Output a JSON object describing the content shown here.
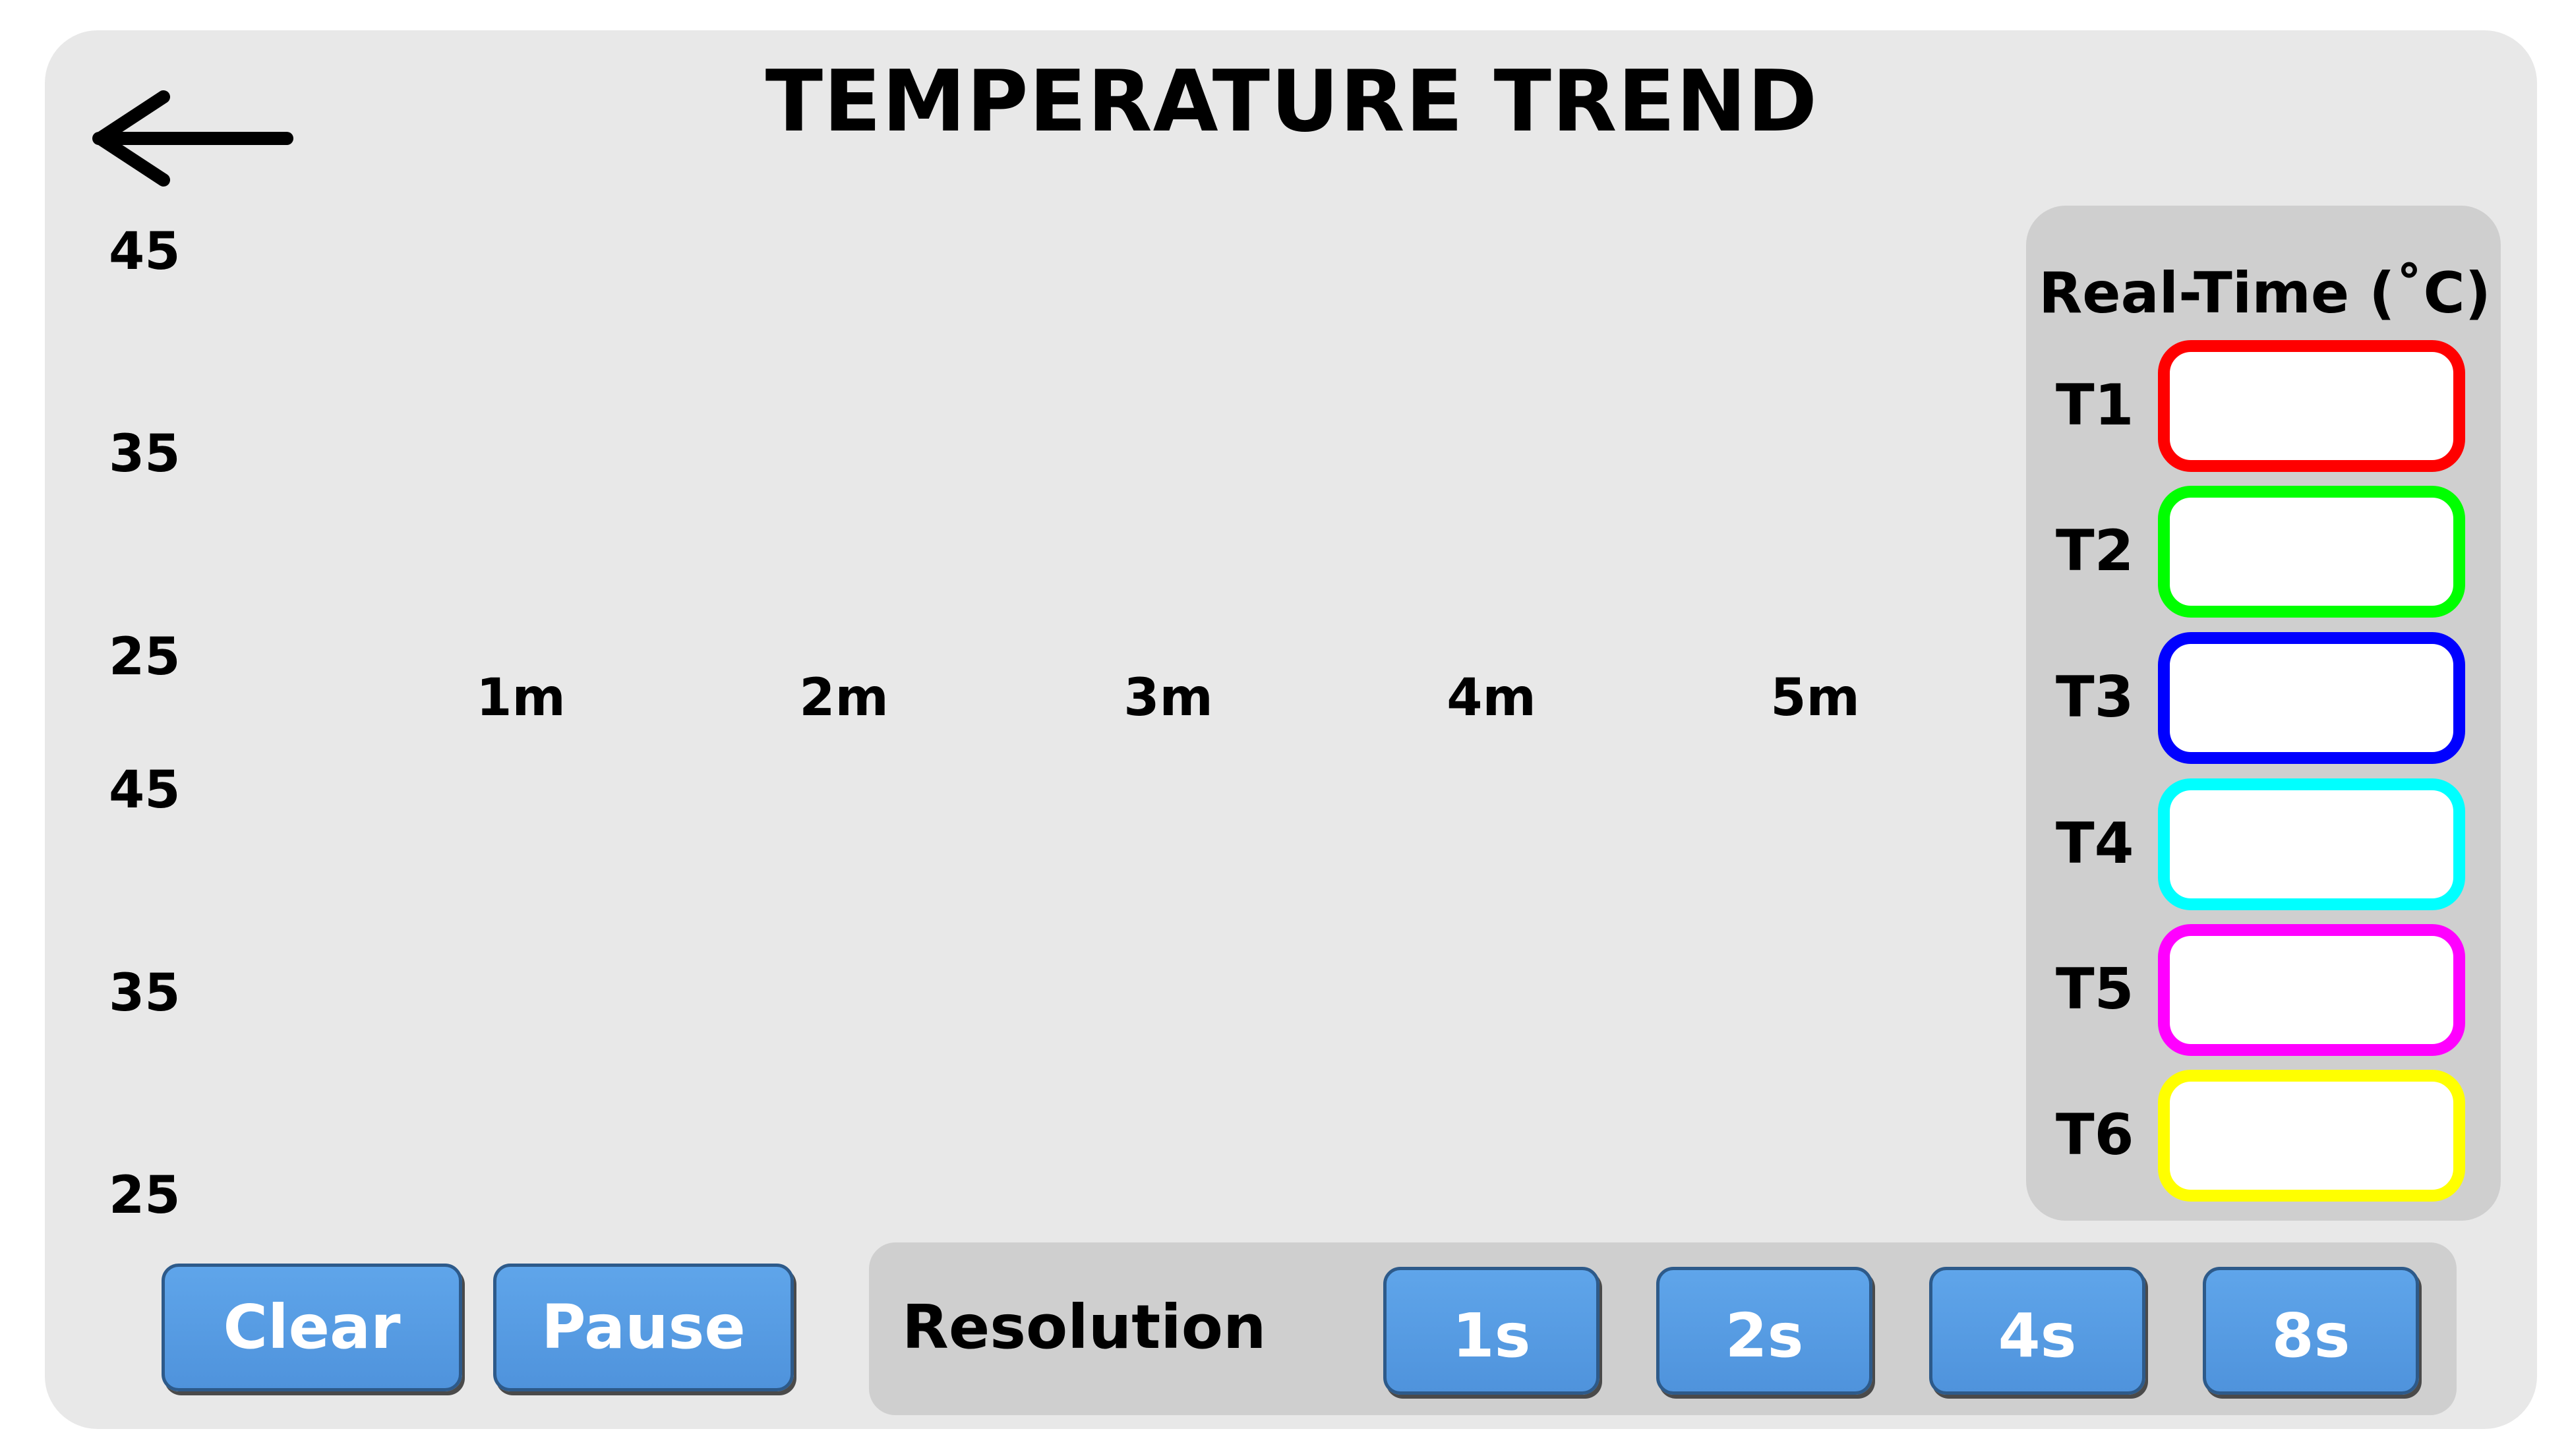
{
  "header": {
    "title": "TEMPERATURE TREND",
    "back_icon": "arrow-left-icon"
  },
  "chart_data": [
    {
      "type": "line",
      "y_ticks": [
        "45",
        "35",
        "25"
      ],
      "x_ticks": [
        "1m",
        "2m",
        "3m",
        "4m",
        "5m"
      ],
      "ylim": [
        25,
        45
      ],
      "grid": false,
      "series": []
    },
    {
      "type": "line",
      "y_ticks": [
        "45",
        "35",
        "25"
      ],
      "x_ticks": [],
      "ylim": [
        25,
        45
      ],
      "grid": false,
      "series": []
    }
  ],
  "realtime": {
    "title": "Real-Time (˚C)",
    "channels": [
      {
        "label": "T1",
        "value": "",
        "color": "#ff0000"
      },
      {
        "label": "T2",
        "value": "",
        "color": "#00ff00"
      },
      {
        "label": "T3",
        "value": "",
        "color": "#0000ff"
      },
      {
        "label": "T4",
        "value": "",
        "color": "#00ffff"
      },
      {
        "label": "T5",
        "value": "",
        "color": "#ff00ff"
      },
      {
        "label": "T6",
        "value": "",
        "color": "#ffff00"
      }
    ]
  },
  "controls": {
    "clear_label": "Clear",
    "pause_label": "Pause",
    "button_color": "#5a9fe6"
  },
  "resolution": {
    "label": "Resolution",
    "options": [
      "1s",
      "2s",
      "4s",
      "8s"
    ]
  }
}
